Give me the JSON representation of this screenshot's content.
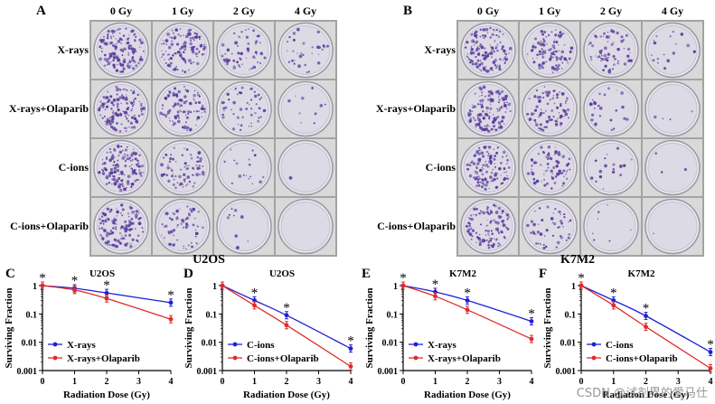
{
  "panel_a": {
    "letter": "A",
    "columns": [
      "0 Gy",
      "1 Gy",
      "2 Gy",
      "4 Gy"
    ],
    "rows": [
      "X-rays",
      "X-rays+Olaparib",
      "C-ions",
      "C-ions+Olaparib"
    ],
    "colony_density": [
      [
        1.0,
        0.75,
        0.4,
        0.22
      ],
      [
        1.0,
        0.7,
        0.35,
        0.07
      ],
      [
        1.0,
        0.55,
        0.12,
        0.01
      ],
      [
        0.9,
        0.45,
        0.07,
        0.002
      ]
    ],
    "cell_line": "U2OS"
  },
  "panel_b": {
    "letter": "B",
    "columns": [
      "0 Gy",
      "1 Gy",
      "2 Gy",
      "4 Gy"
    ],
    "rows": [
      "X-rays",
      "X-rays+Olaparib",
      "C-ions",
      "C-ions+Olaparib"
    ],
    "colony_density": [
      [
        1.0,
        0.8,
        0.45,
        0.12
      ],
      [
        0.9,
        0.6,
        0.18,
        0.03
      ],
      [
        0.9,
        0.5,
        0.12,
        0.02
      ],
      [
        0.8,
        0.35,
        0.05,
        0.01
      ]
    ],
    "cell_line": "K7M2"
  },
  "colors": {
    "blue_series": "#1f1fd6",
    "red_series": "#e02b2b",
    "colony": "#5b3a9e"
  },
  "chart_data": [
    {
      "letter": "C",
      "type": "line",
      "title": "U2OS",
      "xlabel": "Radiation Dose (Gy)",
      "ylabel": "Surviving Fraction",
      "x": [
        0,
        1,
        2,
        4
      ],
      "xlim": [
        0,
        4
      ],
      "ylim": [
        0.001,
        1
      ],
      "yscale": "log",
      "xticks": [
        "0",
        "1",
        "2",
        "3",
        "4"
      ],
      "yticks": [
        "1",
        "0.1",
        "0.01",
        "0.001"
      ],
      "legend": "bottom-left",
      "series": [
        {
          "name": "X-rays",
          "color": "#1f1fd6",
          "values": [
            1,
            0.8,
            0.55,
            0.25
          ]
        },
        {
          "name": "X-rays+Olaparib",
          "color": "#e02b2b",
          "values": [
            1,
            0.7,
            0.35,
            0.065
          ]
        }
      ],
      "significance": [
        {
          "x": 0,
          "label": "*"
        },
        {
          "x": 1,
          "label": "*"
        },
        {
          "x": 2,
          "label": "*"
        },
        {
          "x": 4,
          "label": "*"
        }
      ]
    },
    {
      "letter": "D",
      "type": "line",
      "title": "U2OS",
      "xlabel": "Radiation Dose (Gy)",
      "ylabel": "Surviving Fraction",
      "x": [
        0,
        1,
        2,
        4
      ],
      "xlim": [
        0,
        4
      ],
      "ylim": [
        0.001,
        1
      ],
      "yscale": "log",
      "xticks": [
        "0",
        "1",
        "2",
        "3",
        "4"
      ],
      "yticks": [
        "1",
        "0.1",
        "0.01",
        "0.001"
      ],
      "legend": "bottom-left",
      "series": [
        {
          "name": "C-ions",
          "color": "#1f1fd6",
          "values": [
            1,
            0.3,
            0.09,
            0.006
          ]
        },
        {
          "name": "C-ions+Olaparib",
          "color": "#e02b2b",
          "values": [
            1,
            0.2,
            0.04,
            0.0014
          ]
        }
      ],
      "significance": [
        {
          "x": 1,
          "label": "*"
        },
        {
          "x": 2,
          "label": "*"
        },
        {
          "x": 4,
          "label": "*"
        }
      ]
    },
    {
      "letter": "E",
      "type": "line",
      "title": "K7M2",
      "xlabel": "Radiation Dose (Gy)",
      "ylabel": "Surviving Fraction",
      "x": [
        0,
        1,
        2,
        4
      ],
      "xlim": [
        0,
        4
      ],
      "ylim": [
        0.001,
        1
      ],
      "yscale": "log",
      "xticks": [
        "0",
        "1",
        "2",
        "3",
        "4"
      ],
      "yticks": [
        "1",
        "0.1",
        "0.01",
        "0.001"
      ],
      "legend": "bottom-left",
      "series": [
        {
          "name": "X-rays",
          "color": "#1f1fd6",
          "values": [
            1,
            0.6,
            0.3,
            0.055
          ]
        },
        {
          "name": "X-rays+Olaparib",
          "color": "#e02b2b",
          "values": [
            1,
            0.42,
            0.14,
            0.013
          ]
        }
      ],
      "significance": [
        {
          "x": 0,
          "label": "*"
        },
        {
          "x": 1,
          "label": "*"
        },
        {
          "x": 2,
          "label": "*"
        },
        {
          "x": 4,
          "label": "*"
        }
      ]
    },
    {
      "letter": "F",
      "type": "line",
      "title": "K7M2",
      "xlabel": "Radiation Dose (Gy)",
      "ylabel": "Surviving Fraction",
      "x": [
        0,
        1,
        2,
        4
      ],
      "xlim": [
        0,
        4
      ],
      "ylim": [
        0.001,
        1
      ],
      "yscale": "log",
      "xticks": [
        "0",
        "1",
        "2",
        "3",
        "4"
      ],
      "yticks": [
        "1",
        "0.1",
        "0.01",
        "0.001"
      ],
      "legend": "bottom-left",
      "series": [
        {
          "name": "C-ions",
          "color": "#1f1fd6",
          "values": [
            1,
            0.3,
            0.085,
            0.0045
          ]
        },
        {
          "name": "C-ions+Olaparib",
          "color": "#e02b2b",
          "values": [
            1,
            0.2,
            0.035,
            0.0012
          ]
        }
      ],
      "significance": [
        {
          "x": 0,
          "label": "*"
        },
        {
          "x": 1,
          "label": "*"
        },
        {
          "x": 2,
          "label": "*"
        },
        {
          "x": 4,
          "label": "*"
        }
      ]
    }
  ],
  "watermark": "CSDN @试剂界的爱马仕"
}
